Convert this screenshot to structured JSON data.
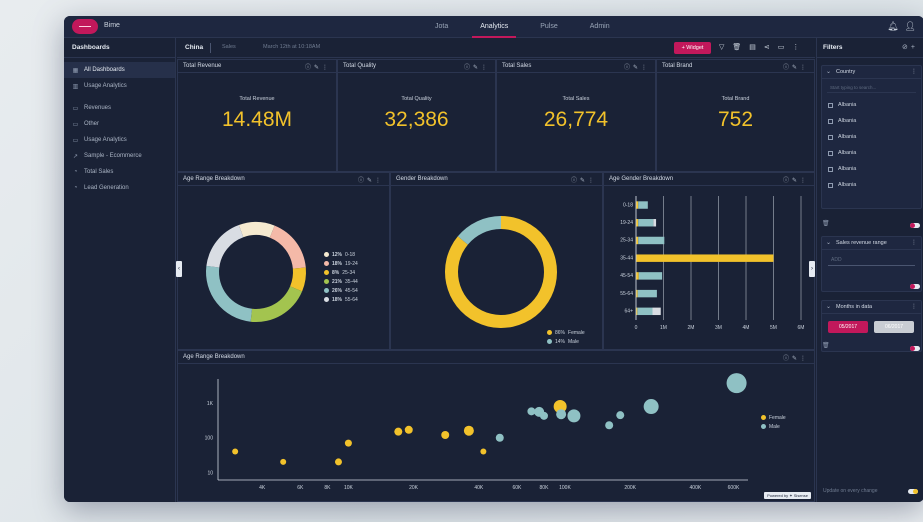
{
  "app": {
    "brand": "Bime",
    "nav": [
      {
        "label": "Jota",
        "active": false
      },
      {
        "label": "Analytics",
        "active": true
      },
      {
        "label": "Pulse",
        "active": false
      },
      {
        "label": "Admin",
        "active": false
      }
    ],
    "top_icons": [
      "bell-icon",
      "user-icon"
    ]
  },
  "sidebar": {
    "title": "Dashboards",
    "items": [
      {
        "label": "All Dashboards",
        "icon": "grid-icon",
        "active": true
      },
      {
        "label": "Usage Analytics",
        "icon": "chart-icon",
        "active": false
      },
      {
        "label": "Revenues",
        "icon": "folder-icon",
        "active": false
      },
      {
        "label": "Other",
        "icon": "folder-icon",
        "active": false
      },
      {
        "label": "Usage Analytics",
        "icon": "folder-icon",
        "active": false
      },
      {
        "label": "Sample - Ecommerce",
        "icon": "chart-icon",
        "active": false
      },
      {
        "label": "Total Sales",
        "icon": "dashboard-icon",
        "active": false
      },
      {
        "label": "Lead Generation",
        "icon": "dashboard-icon",
        "active": false
      }
    ]
  },
  "subbar": {
    "title": "China",
    "sales": "Sales",
    "date": "March 12th at 10:18AM",
    "widget_button": "+ Widget"
  },
  "kpis": [
    {
      "title": "Total Revenue",
      "label": "Total Revenue",
      "value": "14.48M"
    },
    {
      "title": "Total Quality",
      "label": "Total Quality",
      "value": "32,386"
    },
    {
      "title": "Total Sales",
      "label": "Total Sales",
      "value": "26,774"
    },
    {
      "title": "Total Brand",
      "label": "Total Brand",
      "value": "752"
    }
  ],
  "panels": {
    "donut1_title": "Age Range Breakdown",
    "donut2_title": "Gender Breakdown",
    "bars_title": "Age Gender Breakdown",
    "scatter_title": "Age Range Breakdown"
  },
  "chart_data": [
    {
      "type": "pie",
      "variant": "donut",
      "title": "Age Range Breakdown",
      "legend_position": "right",
      "slices": [
        {
          "label": "0-18",
          "value_label": "12%",
          "value": 12,
          "color": "#f5ead0"
        },
        {
          "label": "19-24",
          "value_label": "18%",
          "value": 18,
          "color": "#f4b9a8"
        },
        {
          "label": "25-34",
          "value_label": "8%",
          "value": 8,
          "color": "#f2c22b"
        },
        {
          "label": "35-44",
          "value_label": "21%",
          "value": 21,
          "color": "#a3c44f"
        },
        {
          "label": "45-54",
          "value_label": "26%",
          "value": 26,
          "color": "#8fc1c4"
        },
        {
          "label": "55-64",
          "value_label": "18%",
          "value": 18,
          "color": "#d9dde3"
        }
      ]
    },
    {
      "type": "pie",
      "variant": "donut",
      "title": "Gender Breakdown",
      "legend_position": "bottom-right",
      "slices": [
        {
          "label": "Female",
          "value_label": "86%",
          "value": 86,
          "color": "#f2c22b"
        },
        {
          "label": "Male",
          "value_label": "14%",
          "value": 14,
          "color": "#8fc1c4"
        }
      ]
    },
    {
      "type": "bar",
      "orientation": "horizontal",
      "stacked": true,
      "title": "Age Gender Breakdown",
      "categories": [
        "0-18",
        "19-24",
        "25-34",
        "35-44",
        "45-54",
        "55-64",
        "64+"
      ],
      "series": [
        {
          "name": "Female",
          "color": "#f2c22b",
          "values": [
            0.08,
            0.08,
            0.08,
            5.0,
            0.1,
            0.06,
            0.05
          ]
        },
        {
          "name": "Male",
          "color": "#8fc1c4",
          "values": [
            0.35,
            0.55,
            0.95,
            0.0,
            0.85,
            0.7,
            0.55
          ]
        },
        {
          "name": "Other",
          "color": "#d9dde3",
          "values": [
            0.0,
            0.1,
            0.0,
            0.0,
            0.0,
            0.0,
            0.3
          ]
        }
      ],
      "x_ticks": [
        "0",
        "1M",
        "2M",
        "3M",
        "4M",
        "5M",
        "6M"
      ],
      "xlim": [
        0,
        6
      ]
    },
    {
      "type": "scatter",
      "title": "Age Range Breakdown",
      "x_scale": "log",
      "y_scale": "log",
      "x_ticks": [
        "4K",
        "6K",
        "8K",
        "10K",
        "20K",
        "40K",
        "60K",
        "80K",
        "100K",
        "200K",
        "400K",
        "600K"
      ],
      "y_ticks": [
        "1K",
        "100",
        "10"
      ],
      "legend_position": "right",
      "series": [
        {
          "name": "Female",
          "color": "#f2c22b",
          "points": [
            {
              "x": 3000,
              "y": 40,
              "r": 3
            },
            {
              "x": 5000,
              "y": 20,
              "r": 3
            },
            {
              "x": 9000,
              "y": 20,
              "r": 3.5
            },
            {
              "x": 10000,
              "y": 70,
              "r": 3.5
            },
            {
              "x": 17000,
              "y": 150,
              "r": 4
            },
            {
              "x": 19000,
              "y": 170,
              "r": 4
            },
            {
              "x": 28000,
              "y": 120,
              "r": 4
            },
            {
              "x": 36000,
              "y": 160,
              "r": 5
            },
            {
              "x": 42000,
              "y": 40,
              "r": 3
            },
            {
              "x": 95000,
              "y": 800,
              "r": 6.5
            }
          ]
        },
        {
          "name": "Male",
          "color": "#8fc1c4",
          "points": [
            {
              "x": 50000,
              "y": 100,
              "r": 4
            },
            {
              "x": 70000,
              "y": 580,
              "r": 4
            },
            {
              "x": 76000,
              "y": 560,
              "r": 5
            },
            {
              "x": 80000,
              "y": 430,
              "r": 4
            },
            {
              "x": 96000,
              "y": 480,
              "r": 5
            },
            {
              "x": 110000,
              "y": 430,
              "r": 6.5
            },
            {
              "x": 160000,
              "y": 230,
              "r": 4
            },
            {
              "x": 180000,
              "y": 450,
              "r": 4
            },
            {
              "x": 250000,
              "y": 800,
              "r": 7.5
            },
            {
              "x": 620000,
              "y": 3800,
              "r": 10
            }
          ]
        }
      ]
    }
  ],
  "filters": {
    "title": "Filters",
    "country": {
      "title": "Country",
      "search_placeholder": "Start typing to search...",
      "items": [
        "Albania",
        "Albania",
        "Albania",
        "Albania",
        "Albania",
        "Albania"
      ]
    },
    "sales_range": {
      "title": "Sales revenue range",
      "placeholder": "ADD"
    },
    "months": {
      "title": "Months in data",
      "btn1": "05/2017",
      "btn2": "06/2017"
    },
    "bottom_label": "Update on every change"
  },
  "powered_by": "Powered by ✦ Sisense"
}
